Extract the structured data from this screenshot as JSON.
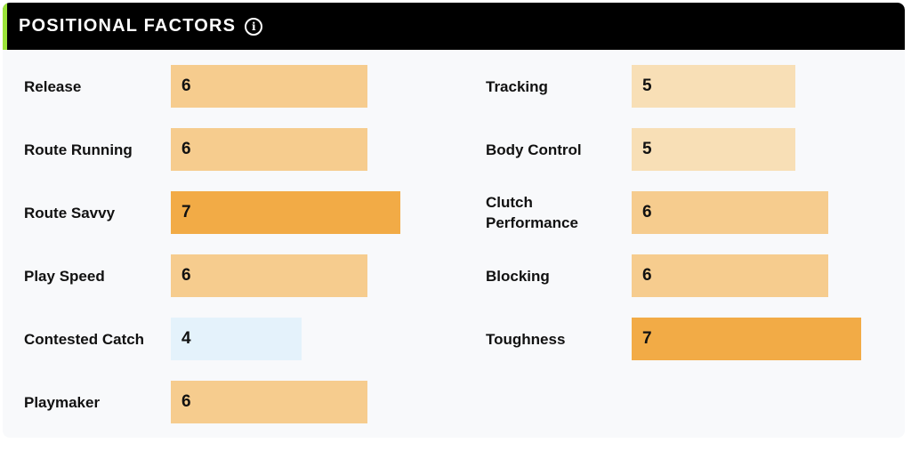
{
  "header": {
    "title": "POSITIONAL FACTORS",
    "info_icon": "info-circle-icon"
  },
  "colors": {
    "header_bg": "#000000",
    "accent": "#9be33a",
    "card_bg": "#f8f9fb",
    "score_4": "#e4f2fb",
    "score_5": "#f8dfb6",
    "score_6": "#f6cc8e",
    "score_7": "#f2ab46"
  },
  "left_factors": [
    {
      "label": "Release",
      "value": "6"
    },
    {
      "label": "Route Running",
      "value": "6"
    },
    {
      "label": "Route Savvy",
      "value": "7"
    },
    {
      "label": "Play Speed",
      "value": "6"
    },
    {
      "label": "Contested Catch",
      "value": "4"
    },
    {
      "label": "Playmaker",
      "value": "6"
    }
  ],
  "right_factors": [
    {
      "label": "Tracking",
      "value": "5"
    },
    {
      "label": "Body Control",
      "value": "5"
    },
    {
      "label": "Clutch Performance",
      "value": "6"
    },
    {
      "label": "Blocking",
      "value": "6"
    },
    {
      "label": "Toughness",
      "value": "7"
    }
  ]
}
